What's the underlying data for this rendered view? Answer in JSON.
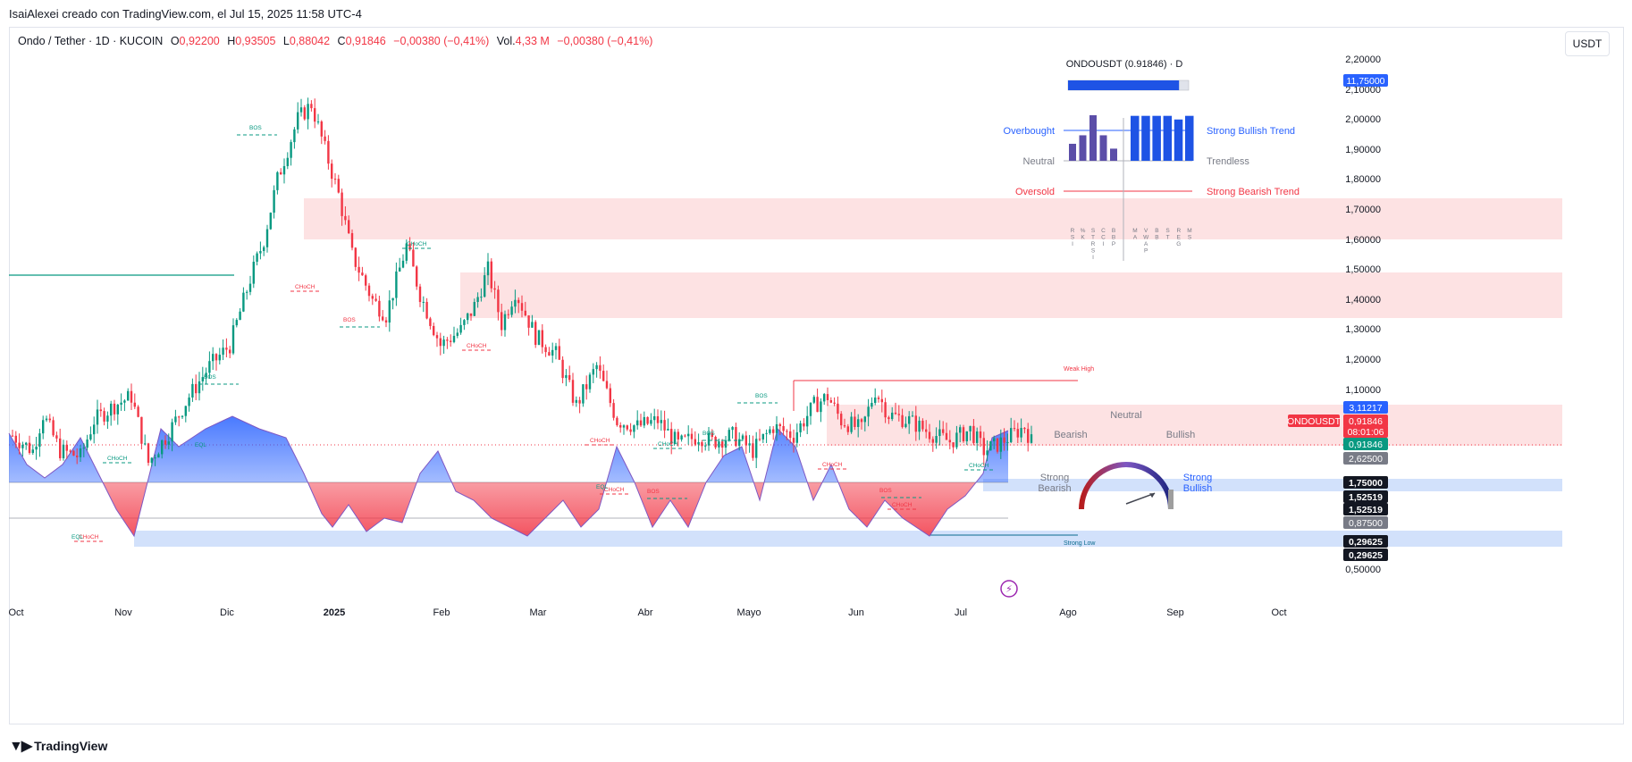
{
  "attribution": "IsaiAlexei creado con TradingView.com, el Jul 15, 2025 11:58 UTC-4",
  "legend": {
    "symbol": "Ondo / Tether · 1D · KUCOIN",
    "o_label": "O",
    "o_value": "0,92200",
    "h_label": "H",
    "h_value": "0,93505",
    "l_label": "L",
    "l_value": "0,88042",
    "c_label": "C",
    "c_value": "0,91846",
    "change": "−0,00380 (−0,41%)",
    "vol_label": "Vol.",
    "vol_value": "4,33 M",
    "vol_change": "−0,00380 (−0,41%)"
  },
  "currency_button": "USDT",
  "footer_logo": "TradingView",
  "colors": {
    "up": "#089981",
    "down": "#f23645",
    "blue": "#2962ff",
    "zone_red": "#fde2e3",
    "zone_blue": "#d2e1fb"
  },
  "chart_data": {
    "type": "candlestick",
    "symbol": "ONDOUSDT",
    "x_ticks": [
      "Oct",
      "Nov",
      "Dic",
      "2025",
      "Feb",
      "Mar",
      "Abr",
      "Mayo",
      "Jun",
      "Jul",
      "Ago",
      "Sep",
      "Oct"
    ],
    "y_ticks": [
      "2,20000",
      "2,10000",
      "2,00000",
      "1,90000",
      "1,80000",
      "1,70000",
      "1,60000",
      "1,50000",
      "1,40000",
      "1,30000",
      "1,20000",
      "1,10000",
      "0,50000"
    ],
    "ylim": [
      0.9,
      2.22
    ],
    "price_path": [
      [
        0,
        0.95
      ],
      [
        6,
        0.9
      ],
      [
        9,
        1.02
      ],
      [
        14,
        0.9
      ],
      [
        20,
        0.88
      ],
      [
        24,
        1.0
      ],
      [
        30,
        1.05
      ],
      [
        35,
        1.08
      ],
      [
        40,
        0.86
      ],
      [
        46,
        0.96
      ],
      [
        52,
        1.08
      ],
      [
        58,
        1.18
      ],
      [
        64,
        1.25
      ],
      [
        70,
        1.47
      ],
      [
        74,
        1.6
      ],
      [
        78,
        1.8
      ],
      [
        84,
        2.0
      ],
      [
        88,
        2.05
      ],
      [
        92,
        1.9
      ],
      [
        96,
        1.75
      ],
      [
        100,
        1.55
      ],
      [
        106,
        1.4
      ],
      [
        110,
        1.35
      ],
      [
        116,
        1.58
      ],
      [
        120,
        1.42
      ],
      [
        126,
        1.25
      ],
      [
        132,
        1.3
      ],
      [
        136,
        1.38
      ],
      [
        140,
        1.5
      ],
      [
        144,
        1.32
      ],
      [
        148,
        1.43
      ],
      [
        154,
        1.28
      ],
      [
        160,
        1.22
      ],
      [
        166,
        1.05
      ],
      [
        172,
        1.18
      ],
      [
        178,
        1.0
      ],
      [
        184,
        0.98
      ],
      [
        190,
        1.0
      ],
      [
        196,
        0.92
      ],
      [
        202,
        0.95
      ],
      [
        206,
        0.93
      ],
      [
        212,
        0.95
      ],
      [
        218,
        0.9
      ],
      [
        224,
        0.98
      ],
      [
        230,
        0.95
      ],
      [
        236,
        1.05
      ],
      [
        240,
        1.08
      ],
      [
        244,
        1.0
      ],
      [
        250,
        0.97
      ],
      [
        254,
        1.1
      ],
      [
        258,
        1.02
      ],
      [
        264,
        1.0
      ],
      [
        270,
        0.96
      ],
      [
        276,
        0.93
      ],
      [
        282,
        0.97
      ],
      [
        286,
        0.9
      ],
      [
        290,
        0.92
      ],
      [
        294,
        0.95
      ],
      [
        298,
        0.98
      ],
      [
        300,
        0.93
      ]
    ],
    "levels": [
      {
        "label": "Weak High",
        "value": 1.12
      },
      {
        "label": "Strong Low",
        "value": 0.0
      }
    ],
    "annotations": {
      "bos": [
        "BOS",
        "BOS",
        "BOS",
        "BOS",
        "BOS",
        "BOS",
        "BOS"
      ],
      "choch": [
        "CHoCH",
        "CHoCH",
        "CHoCH",
        "CHoCH",
        "CHoCH",
        "CHoCH",
        "CHoCH",
        "CHoCH",
        "CHoCH",
        "CHoCH",
        "CHoCH"
      ],
      "eql": [
        "EQL",
        "EQL",
        "EQL"
      ]
    },
    "axis_badges": [
      {
        "text": "11,75000",
        "style": "blue"
      },
      {
        "text": "3,11217",
        "style": "blue"
      },
      {
        "text": "ONDOUSDT",
        "style": "red"
      },
      {
        "text": "0,91846",
        "style": "red"
      },
      {
        "text": "08:01:06",
        "style": "red"
      },
      {
        "text": "0,91846",
        "style": "green"
      },
      {
        "text": "2,62500",
        "style": "grey"
      },
      {
        "text": "1,75000",
        "style": "dark"
      },
      {
        "text": "1,52519",
        "style": "dark"
      },
      {
        "text": "1,52519",
        "style": "dark"
      },
      {
        "text": "0,87500",
        "style": "grey"
      },
      {
        "text": "0,29625",
        "style": "dark"
      },
      {
        "text": "0,29625",
        "style": "dark"
      }
    ],
    "dashboard": {
      "title": "ONDOUSDT (0.91846) · D",
      "bar_fill": 0.92,
      "left_labels": [
        "Overbought",
        "Neutral",
        "Oversold"
      ],
      "right_labels": [
        "Strong Bullish Trend",
        "Trendless",
        "Strong Bearish Trend"
      ],
      "oscillators": [
        {
          "name": "RSI",
          "value": 0.28
        },
        {
          "name": "%K",
          "value": 0.42
        },
        {
          "name": "STRSI",
          "value": 0.75
        },
        {
          "name": "CCI",
          "value": 0.42
        },
        {
          "name": "BBP",
          "value": 0.2
        }
      ],
      "trends": [
        {
          "name": "MA",
          "value": 0.74
        },
        {
          "name": "VWAP",
          "value": 0.74
        },
        {
          "name": "BB",
          "value": 0.74
        },
        {
          "name": "ST",
          "value": 0.74
        },
        {
          "name": "REG",
          "value": 0.68
        },
        {
          "name": "MS",
          "value": 0.74
        }
      ]
    },
    "gauge": {
      "labels": [
        "Neutral",
        "Bearish",
        "Bullish",
        "Strong Bearish",
        "Strong Bullish"
      ],
      "value": 0.82
    }
  }
}
